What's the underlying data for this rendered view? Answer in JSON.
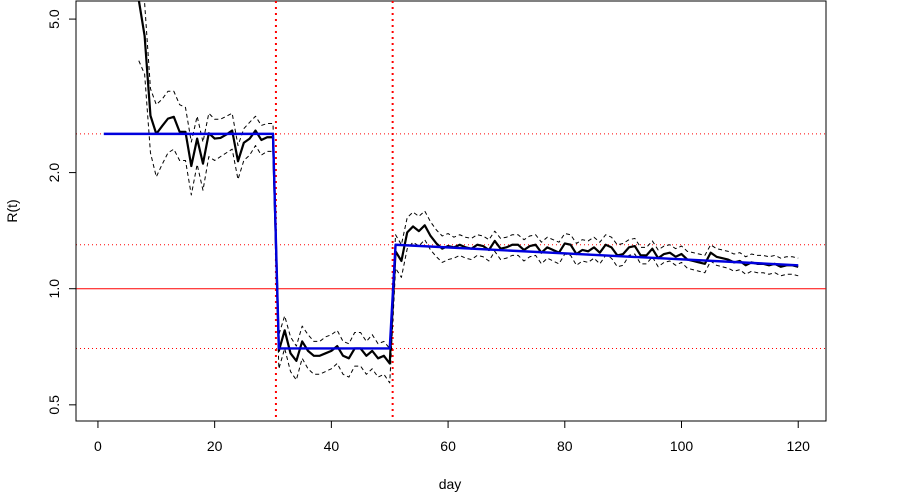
{
  "chart_data": {
    "type": "line",
    "xlabel": "day",
    "ylabel": "R(t)",
    "xlim": [
      -3.76,
      124.76
    ],
    "xticks": [
      0,
      20,
      40,
      60,
      80,
      100,
      120
    ],
    "ylim": [
      0.454,
      5.57
    ],
    "log_y": true,
    "yticks": [
      {
        "value": 0.5,
        "label": "0.5"
      },
      {
        "value": 1,
        "label": "1.0"
      },
      {
        "value": 2,
        "label": "2.0"
      },
      {
        "value": 5,
        "label": "5.0"
      }
    ],
    "reference_lines": {
      "color": "#ff0000",
      "solid_h": [
        1
      ],
      "dotted_h": [
        2.52,
        1.3,
        0.7
      ],
      "dotted_v": [
        30.5,
        50.5
      ]
    },
    "x": [
      7,
      8,
      9,
      10,
      11,
      12,
      13,
      14,
      15,
      16,
      17,
      18,
      19,
      20,
      21,
      22,
      23,
      24,
      25,
      26,
      27,
      28,
      29,
      30,
      31,
      32,
      33,
      34,
      35,
      36,
      37,
      38,
      39,
      40,
      41,
      42,
      43,
      44,
      45,
      46,
      47,
      48,
      49,
      50,
      51,
      52,
      53,
      54,
      55,
      56,
      57,
      58,
      59,
      60,
      61,
      62,
      63,
      64,
      65,
      66,
      67,
      68,
      69,
      70,
      71,
      72,
      73,
      74,
      75,
      76,
      77,
      78,
      79,
      80,
      81,
      82,
      83,
      84,
      85,
      86,
      87,
      88,
      89,
      90,
      91,
      92,
      93,
      94,
      95,
      96,
      97,
      98,
      99,
      100,
      101,
      102,
      103,
      104,
      105,
      106,
      107,
      108,
      109,
      110,
      111,
      112,
      113,
      114,
      115,
      116,
      117,
      118,
      119,
      120
    ],
    "series": [
      {
        "color": "#000000",
        "width": 2.2,
        "dash": "none",
        "values": [
          5.6,
          4.52,
          2.81,
          2.52,
          2.64,
          2.76,
          2.79,
          2.55,
          2.55,
          2.08,
          2.45,
          2.11,
          2.53,
          2.45,
          2.46,
          2.51,
          2.57,
          2.14,
          2.39,
          2.45,
          2.57,
          2.43,
          2.47,
          2.47,
          0.69,
          0.78,
          0.68,
          0.65,
          0.73,
          0.69,
          0.67,
          0.67,
          0.68,
          0.69,
          0.71,
          0.67,
          0.66,
          0.7,
          0.7,
          0.67,
          0.69,
          0.66,
          0.67,
          0.64,
          1.25,
          1.18,
          1.4,
          1.45,
          1.41,
          1.46,
          1.37,
          1.31,
          1.27,
          1.29,
          1.28,
          1.3,
          1.28,
          1.27,
          1.3,
          1.29,
          1.26,
          1.33,
          1.27,
          1.28,
          1.3,
          1.3,
          1.26,
          1.29,
          1.3,
          1.24,
          1.28,
          1.26,
          1.24,
          1.31,
          1.3,
          1.23,
          1.26,
          1.25,
          1.28,
          1.24,
          1.3,
          1.28,
          1.22,
          1.23,
          1.28,
          1.29,
          1.22,
          1.22,
          1.27,
          1.2,
          1.23,
          1.24,
          1.21,
          1.23,
          1.19,
          1.18,
          1.17,
          1.16,
          1.24,
          1.21,
          1.2,
          1.19,
          1.17,
          1.18,
          1.15,
          1.17,
          1.16,
          1.16,
          1.15,
          1.16,
          1.14,
          1.15,
          1.15,
          1.14
        ]
      },
      {
        "color": "#000000",
        "width": 1,
        "dash": "4 3",
        "values": [
          null,
          5.5,
          3.3,
          3.0,
          3.1,
          3.25,
          3.25,
          3.0,
          2.95,
          2.4,
          2.8,
          2.4,
          2.85,
          2.75,
          2.75,
          2.8,
          2.85,
          2.35,
          2.6,
          2.7,
          2.8,
          2.65,
          2.68,
          2.68,
          0.76,
          0.85,
          0.75,
          0.71,
          0.8,
          0.76,
          0.73,
          0.73,
          0.75,
          0.76,
          0.78,
          0.73,
          0.72,
          0.77,
          0.77,
          0.73,
          0.76,
          0.72,
          0.73,
          0.7,
          1.38,
          1.3,
          1.53,
          1.58,
          1.54,
          1.59,
          1.49,
          1.42,
          1.37,
          1.39,
          1.36,
          1.38,
          1.36,
          1.35,
          1.38,
          1.37,
          1.34,
          1.41,
          1.35,
          1.36,
          1.38,
          1.38,
          1.34,
          1.37,
          1.38,
          1.32,
          1.36,
          1.34,
          1.32,
          1.39,
          1.38,
          1.31,
          1.34,
          1.33,
          1.36,
          1.32,
          1.38,
          1.36,
          1.3,
          1.31,
          1.34,
          1.35,
          1.28,
          1.28,
          1.33,
          1.26,
          1.29,
          1.3,
          1.27,
          1.29,
          1.25,
          1.24,
          1.23,
          1.22,
          1.3,
          1.27,
          1.26,
          1.25,
          1.23,
          1.24,
          1.21,
          1.23,
          1.22,
          1.22,
          1.21,
          1.22,
          1.2,
          1.21,
          1.21,
          1.2
        ]
      },
      {
        "color": "#000000",
        "width": 1,
        "dash": "4 3",
        "values": [
          3.9,
          3.6,
          2.25,
          1.95,
          2.1,
          2.25,
          2.3,
          2.15,
          2.15,
          1.75,
          2.1,
          1.8,
          2.2,
          2.15,
          2.2,
          2.25,
          2.3,
          1.92,
          2.15,
          2.22,
          2.35,
          2.22,
          2.27,
          2.27,
          0.62,
          0.7,
          0.61,
          0.58,
          0.66,
          0.62,
          0.6,
          0.6,
          0.61,
          0.62,
          0.64,
          0.6,
          0.59,
          0.63,
          0.63,
          0.6,
          0.62,
          0.59,
          0.6,
          0.57,
          1.13,
          1.07,
          1.27,
          1.32,
          1.29,
          1.34,
          1.26,
          1.21,
          1.17,
          1.19,
          1.2,
          1.22,
          1.2,
          1.19,
          1.22,
          1.21,
          1.18,
          1.25,
          1.19,
          1.2,
          1.22,
          1.22,
          1.18,
          1.21,
          1.22,
          1.16,
          1.2,
          1.18,
          1.16,
          1.23,
          1.22,
          1.15,
          1.18,
          1.17,
          1.2,
          1.16,
          1.22,
          1.2,
          1.14,
          1.15,
          1.22,
          1.23,
          1.16,
          1.16,
          1.21,
          1.14,
          1.17,
          1.18,
          1.15,
          1.17,
          1.13,
          1.12,
          1.11,
          1.1,
          1.18,
          1.15,
          1.14,
          1.13,
          1.11,
          1.12,
          1.09,
          1.11,
          1.1,
          1.1,
          1.09,
          1.1,
          1.08,
          1.09,
          1.09,
          1.08
        ]
      },
      {
        "color": "#0000dd",
        "width": 2.4,
        "dash": "none",
        "x": [
          1,
          30,
          31,
          50,
          51,
          120
        ],
        "values": [
          2.52,
          2.52,
          0.7,
          0.7,
          1.3,
          1.15
        ]
      }
    ]
  }
}
